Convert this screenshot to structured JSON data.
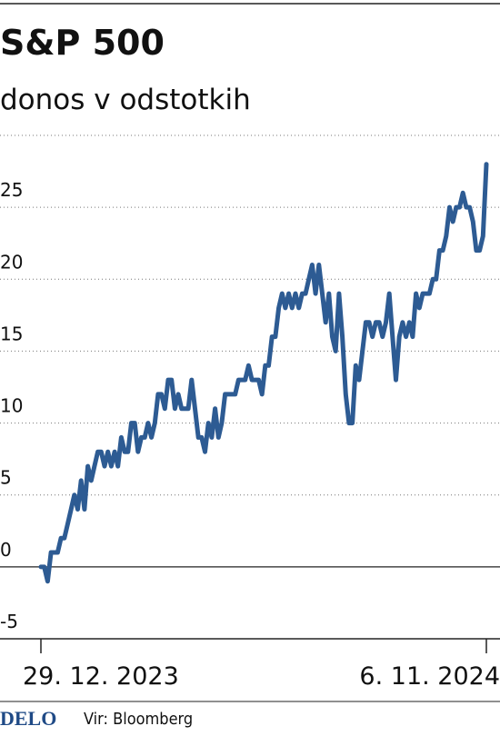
{
  "chart_data": {
    "type": "line",
    "title": "S&P 500",
    "subtitle": "donos v odstotkih",
    "source": "Vir: Bloomberg",
    "brand": "DELO",
    "categories": [
      "29. 12. 2023",
      null,
      null,
      null,
      null,
      null,
      null,
      null,
      null,
      null,
      null,
      null,
      null,
      null,
      null,
      null,
      null,
      null,
      null,
      null,
      null,
      null,
      null,
      null,
      null,
      null,
      null,
      null,
      null,
      null,
      null,
      null,
      null,
      null,
      null,
      null,
      null,
      null,
      null,
      null,
      null,
      null,
      null,
      null,
      null,
      null,
      null,
      null,
      null,
      null,
      null,
      null,
      null,
      null,
      null,
      null,
      null,
      null,
      null,
      null,
      null,
      null,
      null,
      null,
      null,
      null,
      null,
      null,
      null,
      null,
      null,
      null,
      null,
      null,
      null,
      null,
      null,
      null,
      null,
      null,
      null,
      null,
      null,
      null,
      null,
      null,
      null,
      null,
      null,
      null,
      null,
      null,
      null,
      null,
      null,
      null,
      null,
      null,
      null,
      null,
      null,
      null,
      null,
      null,
      null,
      null,
      null,
      null,
      null,
      null,
      null,
      null,
      null,
      null,
      null,
      null,
      null,
      null,
      null,
      null,
      null,
      null,
      null,
      null,
      null,
      null,
      null,
      null,
      null,
      null,
      null,
      null,
      null,
      "6. 11. 2024"
    ],
    "values": [
      0,
      0,
      -1,
      1,
      1,
      1,
      2,
      2,
      3,
      4,
      5,
      4,
      6,
      4,
      7,
      6,
      7,
      8,
      8,
      7,
      8,
      7,
      8,
      7,
      9,
      8,
      8,
      10,
      10,
      8,
      9,
      9,
      10,
      9,
      10,
      12,
      12,
      11,
      13,
      13,
      11,
      12,
      11,
      11,
      11,
      13,
      11,
      9,
      9,
      8,
      10,
      9,
      11,
      9,
      10,
      12,
      12,
      12,
      12,
      13,
      13,
      13,
      14,
      13,
      13,
      13,
      12,
      14,
      14,
      16,
      16,
      18,
      19,
      18,
      19,
      18,
      19,
      18,
      19,
      19,
      20,
      21,
      19,
      21,
      19,
      17,
      19,
      16,
      15,
      19,
      16,
      12,
      10,
      10,
      14,
      13,
      15,
      17,
      17,
      16,
      17,
      17,
      16,
      17,
      19,
      16,
      13,
      16,
      17,
      16,
      17,
      16,
      19,
      18,
      19,
      19,
      19,
      20,
      20,
      22,
      22,
      23,
      25,
      24,
      25,
      25,
      26,
      25,
      25,
      24,
      22,
      22,
      23,
      28
    ],
    "color": "#2d5b93",
    "ylim": [
      -5,
      30
    ],
    "yticks": [
      -5,
      0,
      5,
      10,
      15,
      20,
      25
    ],
    "grid": true
  }
}
